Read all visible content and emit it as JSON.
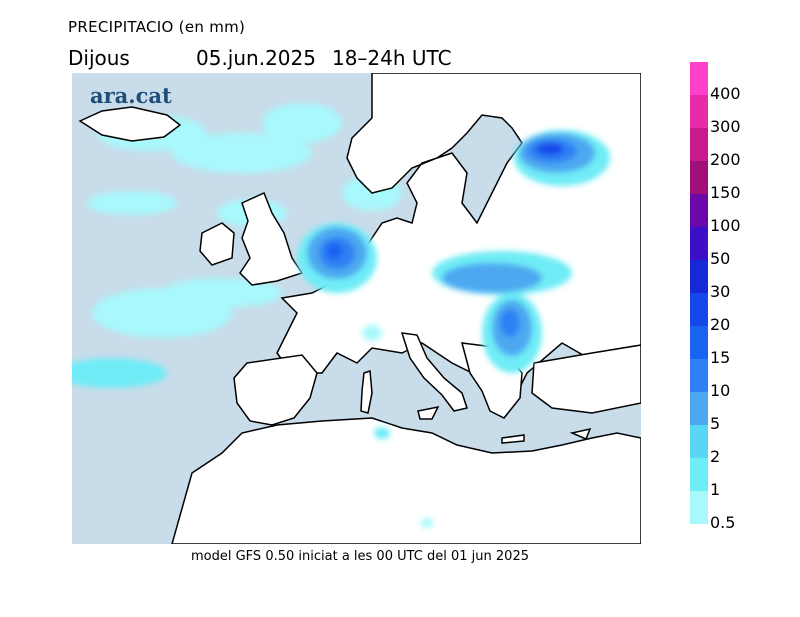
{
  "header": {
    "title": "PRECIPITACIO (en mm)",
    "day": "Dijous",
    "date": "05.jun.2025",
    "hours": "18–24h UTC"
  },
  "map": {
    "brand": "ara.cat",
    "colors": {
      "sea": "#c8dcea",
      "land": "#ffffff",
      "coast": "#000000"
    }
  },
  "legend": {
    "labels": [
      "400",
      "300",
      "200",
      "150",
      "100",
      "50",
      "30",
      "20",
      "15",
      "10",
      "5",
      "2",
      "1",
      "0.5"
    ],
    "colors": [
      "#ff40c8",
      "#e82ca8",
      "#c81a8c",
      "#a0107a",
      "#6a08a8",
      "#3c10c8",
      "#1628d8",
      "#1448e8",
      "#1a62f0",
      "#2e80f4",
      "#4ea8f0",
      "#58d6f4",
      "#70ecf6",
      "#a8f8fc"
    ]
  },
  "footer": {
    "text": "model GFS 0.50 iniciat a les 00 UTC del 01 jun 2025"
  }
}
